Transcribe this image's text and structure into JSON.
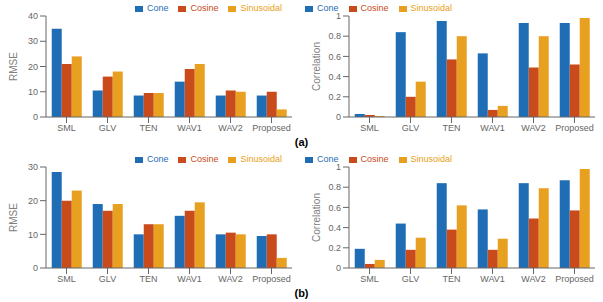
{
  "chart_data": [
    {
      "type": "bar",
      "categories": [
        "SML",
        "GLV",
        "TEN",
        "WAV1",
        "WAV2",
        "Proposed"
      ],
      "series": [
        {
          "name": "Cone",
          "color": "#1f6db5",
          "values": [
            35,
            10.5,
            8.5,
            14,
            8.5,
            8.5
          ]
        },
        {
          "name": "Cosine",
          "color": "#c94a1a",
          "values": [
            21,
            16,
            9.5,
            19,
            10.5,
            10
          ]
        },
        {
          "name": "Sinusoidal",
          "color": "#e8a020",
          "values": [
            24,
            18,
            9.5,
            21,
            10,
            3
          ]
        }
      ],
      "ylabel": "RMSE",
      "ylim": [
        0,
        40
      ],
      "yticks": [
        0,
        10,
        20,
        30,
        40
      ],
      "legend": "upper right",
      "grid": false
    },
    {
      "type": "bar",
      "categories": [
        "SML",
        "GLV",
        "TEN",
        "WAV1",
        "WAV2",
        "Proposed"
      ],
      "series": [
        {
          "name": "Cone",
          "color": "#1f6db5",
          "values": [
            0.03,
            0.84,
            0.95,
            0.63,
            0.93,
            0.93
          ]
        },
        {
          "name": "Cosine",
          "color": "#c94a1a",
          "values": [
            0.02,
            0.2,
            0.57,
            0.07,
            0.49,
            0.52
          ]
        },
        {
          "name": "Sinusoidal",
          "color": "#e8a020",
          "values": [
            0.01,
            0.35,
            0.8,
            0.11,
            0.8,
            0.98
          ]
        }
      ],
      "ylabel": "Correlation",
      "ylim": [
        0,
        1
      ],
      "yticks": [
        0,
        0.2,
        0.4,
        0.6,
        0.8,
        1
      ],
      "legend": "upper left",
      "grid": false
    },
    {
      "type": "bar",
      "categories": [
        "SML",
        "GLV",
        "TEN",
        "WAV1",
        "WAV2",
        "Proposed"
      ],
      "series": [
        {
          "name": "Cone",
          "color": "#1f6db5",
          "values": [
            28.5,
            19,
            10,
            15.5,
            10,
            9.5
          ]
        },
        {
          "name": "Cosine",
          "color": "#c94a1a",
          "values": [
            20,
            17,
            13,
            17,
            10.5,
            10
          ]
        },
        {
          "name": "Sinusoidal",
          "color": "#e8a020",
          "values": [
            23,
            19,
            13,
            19.5,
            10,
            3
          ]
        }
      ],
      "ylabel": "RMSE",
      "ylim": [
        0,
        30
      ],
      "yticks": [
        0,
        10,
        20,
        30
      ],
      "legend": "upper right",
      "grid": false
    },
    {
      "type": "bar",
      "categories": [
        "SML",
        "GLV",
        "TEN",
        "WAV1",
        "WAV2",
        "Proposed"
      ],
      "series": [
        {
          "name": "Cone",
          "color": "#1f6db5",
          "values": [
            0.19,
            0.44,
            0.84,
            0.58,
            0.84,
            0.87
          ]
        },
        {
          "name": "Cosine",
          "color": "#c94a1a",
          "values": [
            0.04,
            0.18,
            0.38,
            0.18,
            0.49,
            0.57
          ]
        },
        {
          "name": "Sinusoidal",
          "color": "#e8a020",
          "values": [
            0.08,
            0.3,
            0.62,
            0.29,
            0.79,
            0.98
          ]
        }
      ],
      "ylabel": "Correlation",
      "ylim": [
        0,
        1
      ],
      "yticks": [
        0,
        0.2,
        0.4,
        0.6,
        0.8,
        1
      ],
      "legend": "upper left",
      "grid": false
    }
  ],
  "annotations": [
    "(a)",
    "(b)"
  ]
}
